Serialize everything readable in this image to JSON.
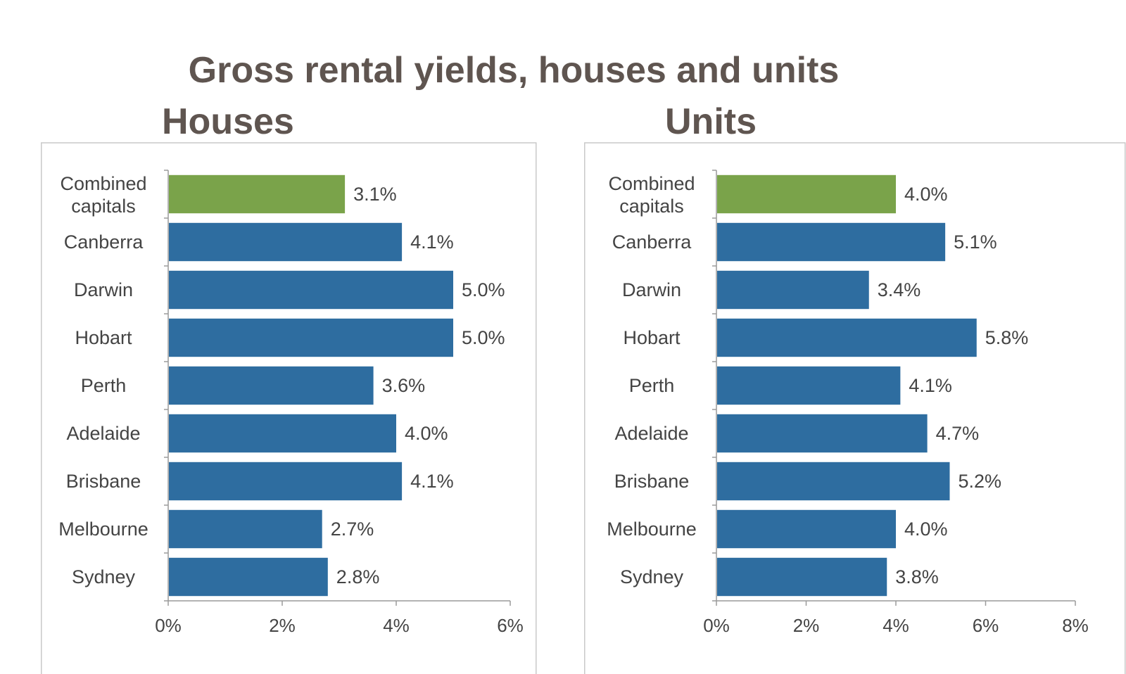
{
  "title": "Gross rental yields, houses and units",
  "colors": {
    "highlight": "#7aa34a",
    "bar": "#2e6da0",
    "title": "#5f5550"
  },
  "chart_data": [
    {
      "type": "bar",
      "orientation": "horizontal",
      "title": "Houses",
      "categories": [
        "Combined capitals",
        "Canberra",
        "Darwin",
        "Hobart",
        "Perth",
        "Adelaide",
        "Brisbane",
        "Melbourne",
        "Sydney"
      ],
      "values": [
        3.1,
        4.1,
        5.0,
        5.0,
        3.6,
        4.0,
        4.1,
        2.7,
        2.8
      ],
      "value_labels": [
        "3.1%",
        "4.1%",
        "5.0%",
        "5.0%",
        "3.6%",
        "4.0%",
        "4.1%",
        "2.7%",
        "2.8%"
      ],
      "xlim": [
        0,
        6
      ],
      "xticks": [
        0,
        2,
        4,
        6
      ],
      "xtick_labels": [
        "0%",
        "2%",
        "4%",
        "6%"
      ],
      "highlight_index": 0,
      "grid": false
    },
    {
      "type": "bar",
      "orientation": "horizontal",
      "title": "Units",
      "categories": [
        "Combined capitals",
        "Canberra",
        "Darwin",
        "Hobart",
        "Perth",
        "Adelaide",
        "Brisbane",
        "Melbourne",
        "Sydney"
      ],
      "values": [
        4.0,
        5.1,
        3.4,
        5.8,
        4.1,
        4.7,
        5.2,
        4.0,
        3.8
      ],
      "value_labels": [
        "4.0%",
        "5.1%",
        "3.4%",
        "5.8%",
        "4.1%",
        "4.7%",
        "5.2%",
        "4.0%",
        "3.8%"
      ],
      "xlim": [
        0,
        8
      ],
      "xticks": [
        0,
        2,
        4,
        6,
        8
      ],
      "xtick_labels": [
        "0%",
        "2%",
        "4%",
        "6%",
        "8%"
      ],
      "highlight_index": 0,
      "grid": false
    }
  ]
}
